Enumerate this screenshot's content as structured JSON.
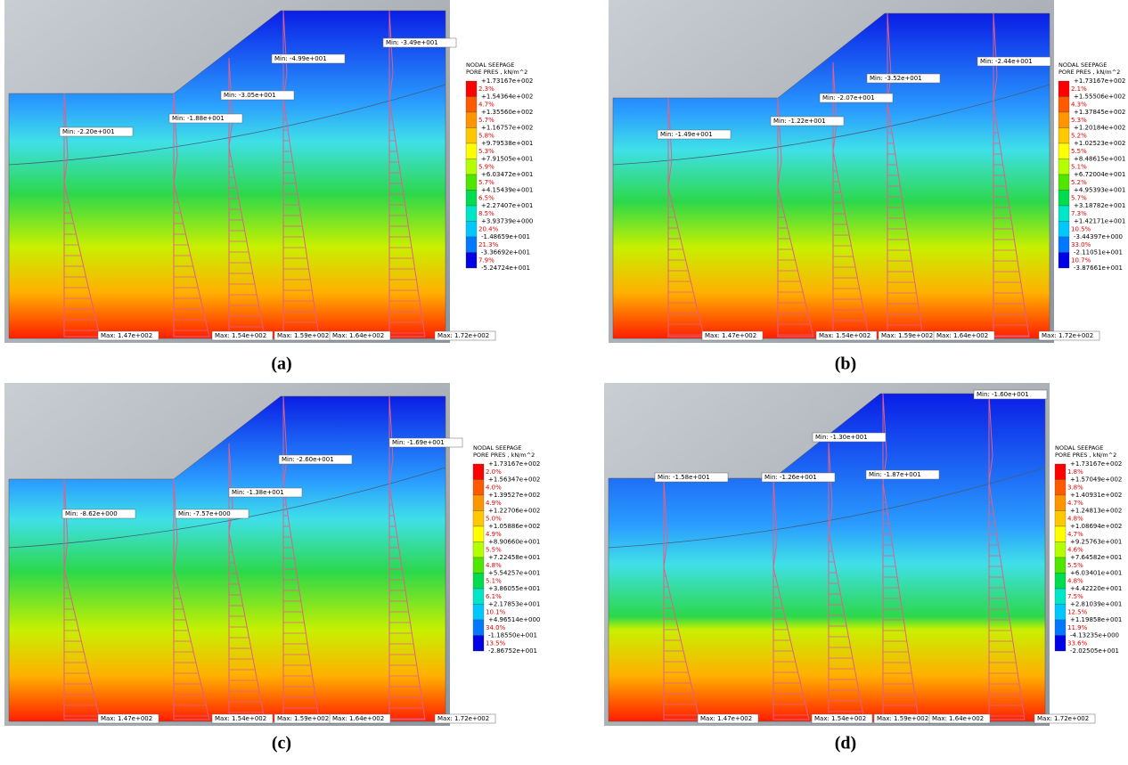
{
  "panels": [
    {
      "caption": "(a)",
      "legend": {
        "title": [
          "NODAL SEEPAGE",
          "PORE PRES , kN/m^2"
        ],
        "levels": [
          "+1.73167e+002",
          "+1.54364e+002",
          "+1.35560e+002",
          "+1.16757e+002",
          "+9.79538e+001",
          "+7.91505e+001",
          "+6.03472e+001",
          "+4.15439e+001",
          "+2.27407e+001",
          "+3.93739e+000",
          "-1.48659e+001",
          "-3.36692e+001",
          "-5.24724e+001"
        ],
        "percents": [
          "2.3%",
          "4.7%",
          "5.7%",
          "5.8%",
          "5.3%",
          "5.9%",
          "5.7%",
          "6.5%",
          "8.5%",
          "20.4%",
          "21.3%",
          "7.9%"
        ]
      },
      "min_labels": [
        "Min: -2.20e+001",
        "Min: -1.88e+001",
        "Min: -3.05e+001",
        "Min: -4.99e+001",
        "Min: -3.49e+001"
      ],
      "max_labels": [
        "Max: 1.47e+002",
        "Max: 1.54e+002",
        "Max: 1.59e+002",
        "Max: 1.64e+002",
        "Max: 1.72e+002"
      ]
    },
    {
      "caption": "(b)",
      "legend": {
        "title": [
          "NODAL SEEPAGE",
          "PORE PRES , kN/m^2"
        ],
        "levels": [
          "+1.73167e+002",
          "+1.55506e+002",
          "+1.37845e+002",
          "+1.20184e+002",
          "+1.02523e+002",
          "+8.48615e+001",
          "+6.72004e+001",
          "+4.95393e+001",
          "+3.18782e+001",
          "+1.42171e+001",
          "-3.44397e+000",
          "-2.11051e+001",
          "-3.87661e+001"
        ],
        "percents": [
          "2.1%",
          "4.3%",
          "5.3%",
          "5.2%",
          "5.5%",
          "5.1%",
          "5.2%",
          "5.7%",
          "7.3%",
          "10.5%",
          "33.0%",
          "10.7%"
        ]
      },
      "min_labels": [
        "Min: -1.49e+001",
        "Min: -1.22e+001",
        "Min: -2.07e+001",
        "Min: -3.52e+001",
        "Min: -2.44e+001"
      ],
      "max_labels": [
        "Max: 1.47e+002",
        "Max: 1.54e+002",
        "Max: 1.59e+002",
        "Max: 1.64e+002",
        "Max: 1.72e+002"
      ]
    },
    {
      "caption": "(c)",
      "legend": {
        "title": [
          "NODAL SEEPAGE",
          "PORE PRES , kN/m^2"
        ],
        "levels": [
          "+1.73167e+002",
          "+1.56347e+002",
          "+1.39527e+002",
          "+1.22706e+002",
          "+1.05886e+002",
          "+8.90660e+001",
          "+7.22458e+001",
          "+5.54257e+001",
          "+3.86055e+001",
          "+2.17853e+001",
          "+4.96514e+000",
          "-1.18550e+001",
          "-2.86752e+001"
        ],
        "percents": [
          "2.0%",
          "4.0%",
          "4.9%",
          "5.0%",
          "4.9%",
          "5.5%",
          "4.8%",
          "5.1%",
          "6.1%",
          "10.1%",
          "34.0%",
          "13.5%"
        ]
      },
      "min_labels": [
        "Min: -8.62e+000",
        "Min: -7.57e+000",
        "Min: -1.38e+001",
        "Min: -2.60e+001",
        "Min: -1.69e+001"
      ],
      "max_labels": [
        "Max: 1.47e+002",
        "Max: 1.54e+002",
        "Max: 1.59e+002",
        "Max: 1.64e+002",
        "Max: 1.72e+002"
      ]
    },
    {
      "caption": "(d)",
      "legend": {
        "title": [
          "NODAL SEEPAGE",
          "PORE PRES , kN/m^2"
        ],
        "levels": [
          "+1.73167e+002",
          "+1.57049e+002",
          "+1.40931e+002",
          "+1.24813e+002",
          "+1.08694e+002",
          "+9.25763e+001",
          "+7.64582e+001",
          "+6.03401e+001",
          "+4.42220e+001",
          "+2.81039e+001",
          "+1.19858e+001",
          "-4.13235e+000",
          "-2.02505e+001"
        ],
        "percents": [
          "1.8%",
          "3.8%",
          "4.7%",
          "4.8%",
          "4.7%",
          "4.6%",
          "5.5%",
          "4.8%",
          "7.5%",
          "12.5%",
          "11.9%",
          "33.6%"
        ]
      },
      "min_labels": [
        "Min: -1.58e+001",
        "Min: -1.26e+001",
        "Min: -1.30e+001",
        "Min: -1.87e+001",
        "Min: -1.60e+001"
      ],
      "max_labels": [
        "Max: 1.47e+002",
        "Max: 1.54e+002",
        "Max: 1.59e+002",
        "Max: 1.64e+002",
        "Max: 1.72e+002"
      ]
    }
  ]
}
